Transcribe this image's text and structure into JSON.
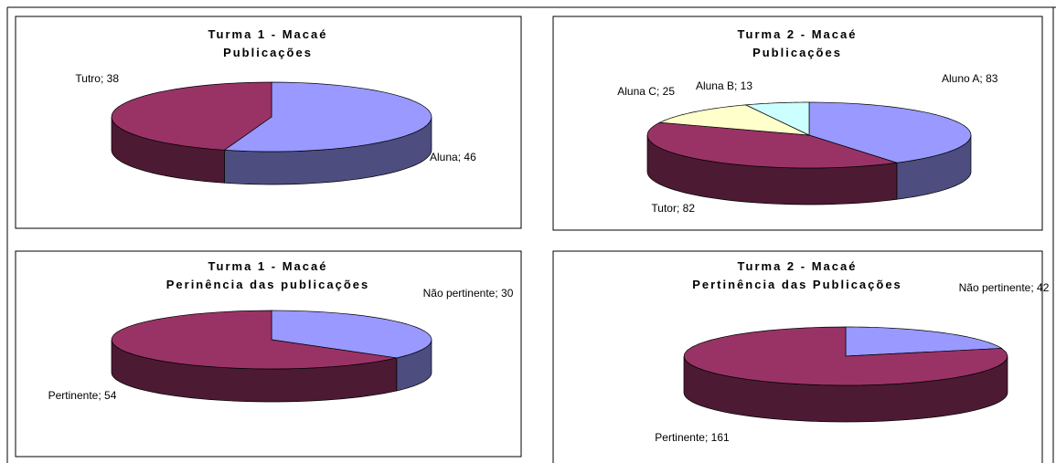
{
  "chart_data": [
    {
      "type": "pie",
      "title": "Turma 1 - Macaé",
      "subtitle": "Publicações",
      "label_separator": ";",
      "categories": [
        "Aluna",
        "Tutro"
      ],
      "values": [
        46,
        38
      ],
      "colors": [
        "#9999ff",
        "#993366"
      ]
    },
    {
      "type": "pie",
      "title": "Turma 2 - Macaé",
      "subtitle": "Publicações",
      "label_separator": ";",
      "categories": [
        "Aluno A",
        "Tutor",
        "Aluna C",
        "Aluna B"
      ],
      "values": [
        83,
        82,
        25,
        13
      ],
      "colors": [
        "#9999ff",
        "#993366",
        "#ffffcc",
        "#ccffff"
      ]
    },
    {
      "type": "pie",
      "title": "Turma 1 - Macaé",
      "subtitle": "Perinência das publicações",
      "label_separator": ";",
      "categories": [
        "Não pertinente",
        "Pertinente"
      ],
      "values": [
        30,
        54
      ],
      "colors": [
        "#9999ff",
        "#993366"
      ]
    },
    {
      "type": "pie",
      "title": "Turma 2 - Macaé",
      "subtitle": "Pertinência das Publicações",
      "label_separator": ";",
      "categories": [
        "Não pertinente",
        "Pertinente"
      ],
      "values": [
        42,
        161
      ],
      "colors": [
        "#9999ff",
        "#993366"
      ]
    }
  ]
}
